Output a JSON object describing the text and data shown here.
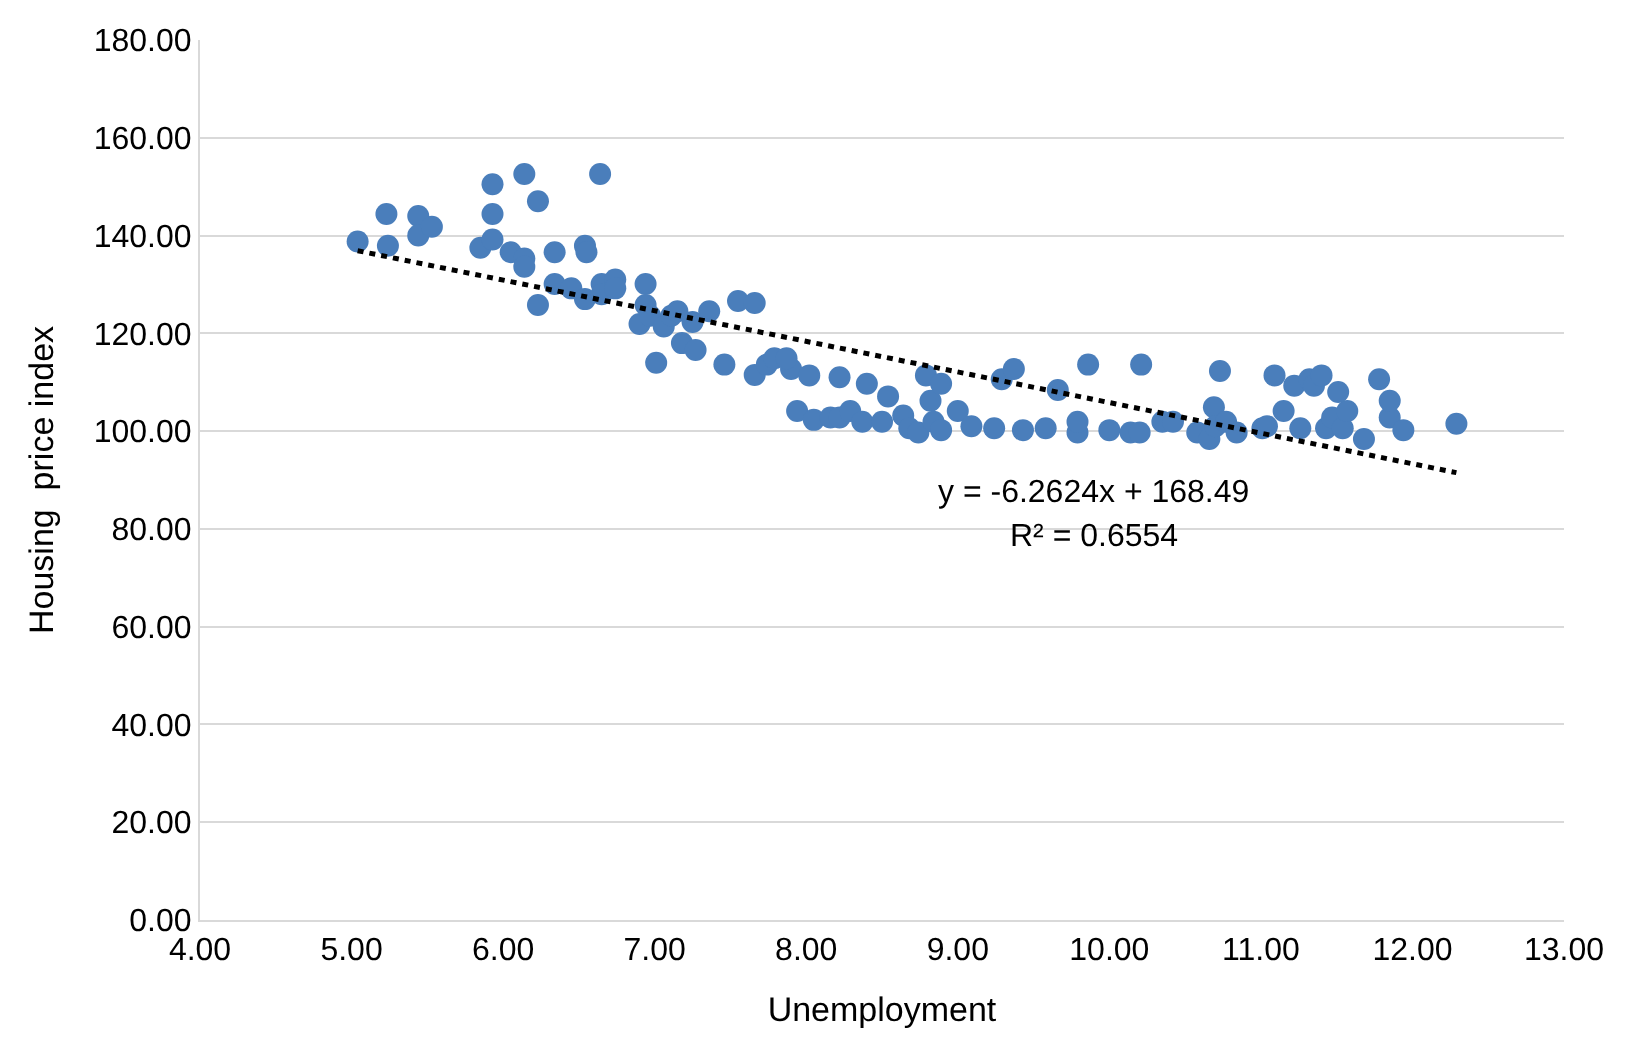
{
  "chart_data": {
    "type": "scatter",
    "xlabel": "Unemployment",
    "ylabel": "Housing  price index",
    "x": [
      5.04,
      5.23,
      5.24,
      5.44,
      5.44,
      5.53,
      5.85,
      5.93,
      5.93,
      5.93,
      6.05,
      6.14,
      6.14,
      6.14,
      6.23,
      6.23,
      6.34,
      6.34,
      6.45,
      6.54,
      6.54,
      6.55,
      6.64,
      6.65,
      6.65,
      6.74,
      6.74,
      6.9,
      6.94,
      6.94,
      6.97,
      7.01,
      7.06,
      7.11,
      7.18,
      7.15,
      7.25,
      7.27,
      7.36,
      7.46,
      7.55,
      7.66,
      7.66,
      7.74,
      7.79,
      7.9,
      7.87,
      7.94,
      8.05,
      8.02,
      8.16,
      8.22,
      8.22,
      8.29,
      8.37,
      8.4,
      8.5,
      8.54,
      8.64,
      8.68,
      8.74,
      8.79,
      8.82,
      8.84,
      8.89,
      8.89,
      9.0,
      9.09,
      9.24,
      9.29,
      9.37,
      9.43,
      9.58,
      9.66,
      9.79,
      9.79,
      9.86,
      10.0,
      10.14,
      10.2,
      10.21,
      10.35,
      10.42,
      10.58,
      10.66,
      10.69,
      10.7,
      10.73,
      10.77,
      10.84,
      11.01,
      11.04,
      11.09,
      11.15,
      11.22,
      11.26,
      11.32,
      11.35,
      11.4,
      11.43,
      11.47,
      11.54,
      11.57,
      11.51,
      11.68,
      11.78,
      11.85,
      11.85,
      11.94,
      12.29
    ],
    "series": [
      {
        "color": "#4a7ebb",
        "marker": "circle",
        "values": [
          138.8,
          144.4,
          137.9,
          144,
          140,
          141.8,
          137.5,
          150.5,
          144.4,
          139.2,
          136.6,
          152.6,
          135.3,
          133.6,
          147,
          125.8,
          136.6,
          130.1,
          129.2,
          137.9,
          127,
          136.6,
          152.6,
          130.1,
          128,
          131,
          129.2,
          121.9,
          130.1,
          125.8,
          123.6,
          114,
          121.4,
          123.6,
          118,
          124.5,
          122.3,
          116.6,
          124.5,
          113.6,
          126.6,
          126.2,
          111.5,
          113.6,
          114.9,
          112.7,
          114.9,
          104.1,
          102.3,
          111.4,
          102.8,
          111,
          102.8,
          104.1,
          101.9,
          109.7,
          101.9,
          107.1,
          103.2,
          100.6,
          99.7,
          111.4,
          106.2,
          101.9,
          109.7,
          100.2,
          104.1,
          101,
          100.6,
          110.6,
          112.7,
          100.2,
          100.6,
          108.4,
          99.7,
          101.9,
          113.6,
          100.2,
          99.7,
          99.7,
          113.6,
          101.9,
          101.9,
          99.7,
          98.4,
          104.9,
          101,
          112.3,
          101.9,
          99.7,
          100.6,
          101,
          111.4,
          104.1,
          109.3,
          100.6,
          110.6,
          109.3,
          111.4,
          100.6,
          102.8,
          100.6,
          104.1,
          108,
          98.4,
          110.6,
          102.8,
          106.2,
          100.2,
          101.5
        ]
      },
      {
        "type": "line",
        "color": "#000000",
        "line_style": "dotted",
        "marker": "none",
        "x": [
          5.04,
          12.29
        ],
        "values": [
          136.9,
          91.5
        ]
      }
    ],
    "annotations": [
      "y = -6.2624x + 168.49",
      "R² = 0.6554"
    ],
    "xlim": [
      4,
      13
    ],
    "ylim": [
      0,
      180
    ],
    "xticks": [
      {
        "value": 4,
        "label": "4.00"
      },
      {
        "value": 5,
        "label": "5.00"
      },
      {
        "value": 6,
        "label": "6.00"
      },
      {
        "value": 7,
        "label": "7.00"
      },
      {
        "value": 8,
        "label": "8.00"
      },
      {
        "value": 9,
        "label": "9.00"
      },
      {
        "value": 10,
        "label": "10.00"
      },
      {
        "value": 11,
        "label": "11.00"
      },
      {
        "value": 12,
        "label": "12.00"
      },
      {
        "value": 13,
        "label": "13.00"
      }
    ],
    "yticks": [
      {
        "value": 0,
        "label": "0.00"
      },
      {
        "value": 20,
        "label": "20.00"
      },
      {
        "value": 40,
        "label": "40.00"
      },
      {
        "value": 60,
        "label": "60.00"
      },
      {
        "value": 80,
        "label": "80.00"
      },
      {
        "value": 100,
        "label": "100.00"
      },
      {
        "value": 120,
        "label": "120.00"
      },
      {
        "value": 140,
        "label": "140.00"
      },
      {
        "value": 160,
        "label": "160.00"
      },
      {
        "value": 180,
        "label": "180.00"
      }
    ],
    "grid": "y",
    "legend": false
  }
}
